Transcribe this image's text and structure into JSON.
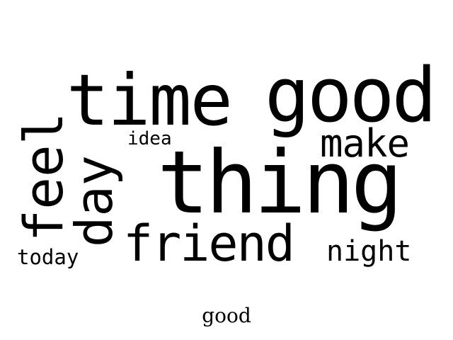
{
  "cloud": {
    "words": {
      "time": "time",
      "good": "good",
      "thing": "thing",
      "feel": "feel",
      "day": "day",
      "friend": "friend",
      "make": "make",
      "idea": "idea",
      "night": "night",
      "today": "today"
    }
  },
  "caption": "good",
  "colors": {
    "text": "#000000",
    "background": "#ffffff"
  }
}
